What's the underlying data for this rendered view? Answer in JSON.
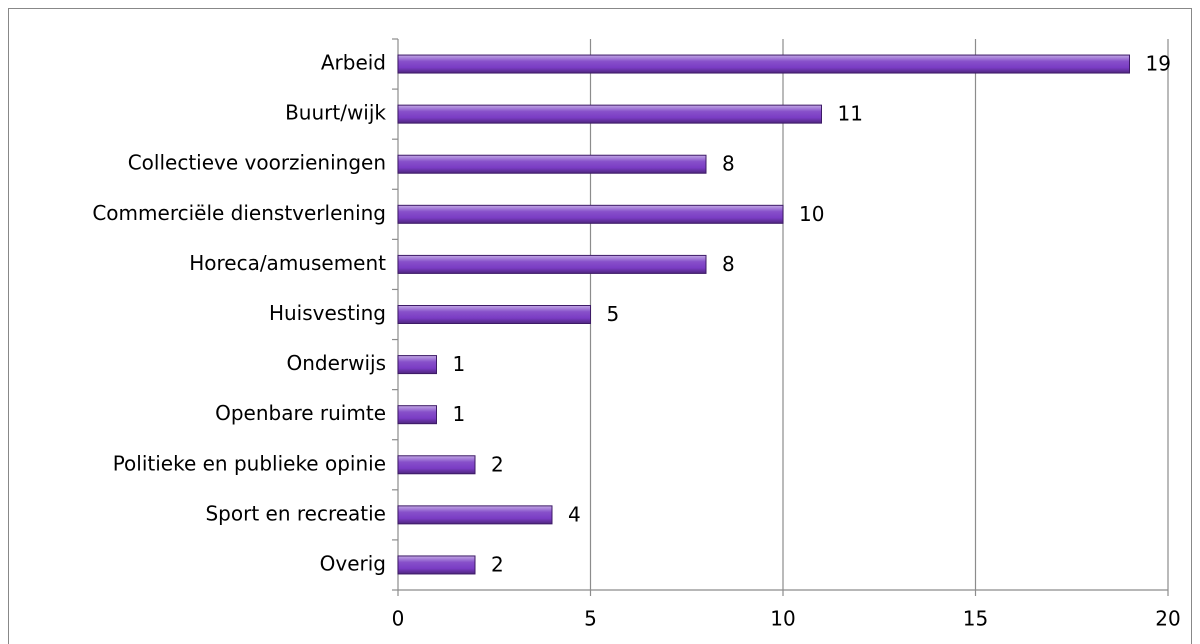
{
  "chart_data": {
    "type": "bar",
    "orientation": "horizontal",
    "categories": [
      "Arbeid",
      "Buurt/wijk",
      "Collectieve voorzieningen",
      "Commerciële dienstverlening",
      "Horeca/amusement",
      "Huisvesting",
      "Onderwijs",
      "Openbare ruimte",
      "Politieke en publieke opinie",
      "Sport en recreatie",
      "Overig"
    ],
    "values": [
      19,
      11,
      8,
      10,
      8,
      5,
      1,
      1,
      2,
      4,
      2
    ],
    "color": "#7a3cc4",
    "xlim": [
      0,
      20
    ],
    "xticks": [
      0,
      5,
      10,
      15,
      20
    ],
    "grid": true
  }
}
